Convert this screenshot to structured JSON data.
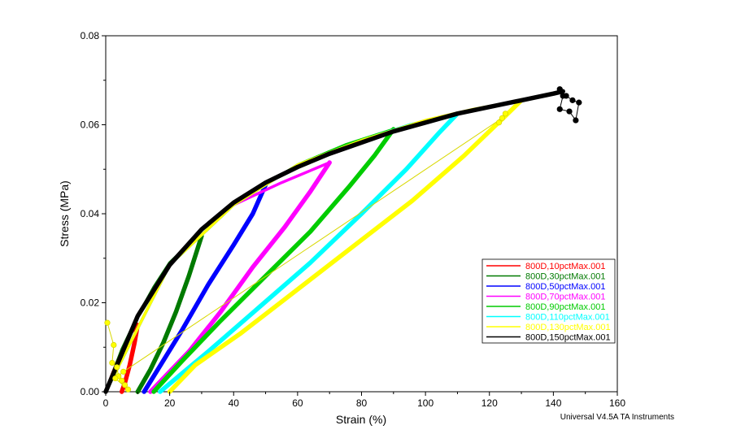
{
  "chart_data": {
    "type": "line",
    "xlabel": "Strain (%)",
    "ylabel": "Stress (MPa)",
    "xlim": [
      0,
      160
    ],
    "ylim": [
      0,
      0.08
    ],
    "x_ticks": [
      "0",
      "20",
      "40",
      "60",
      "80",
      "100",
      "120",
      "140",
      "160"
    ],
    "y_ticks": [
      "0.00",
      "0.02",
      "0.04",
      "0.06",
      "0.08"
    ],
    "credit": "Universal V4.5A TA Instruments",
    "grid": false,
    "legend_position": "lower-right",
    "series": [
      {
        "name": "800D,10pctMax.001",
        "color": "#ff0000",
        "loading": [
          [
            0,
            0
          ],
          [
            2,
            0.004
          ],
          [
            4,
            0.0075
          ],
          [
            6,
            0.0105
          ],
          [
            8,
            0.0132
          ],
          [
            10,
            0.015
          ]
        ],
        "unloading": [
          [
            10,
            0.015
          ],
          [
            9,
            0.011
          ],
          [
            7.5,
            0.006
          ],
          [
            6,
            0.002
          ],
          [
            5,
            0
          ]
        ]
      },
      {
        "name": "800D,30pctMax.001",
        "color": "#007a00",
        "loading": [
          [
            0,
            0
          ],
          [
            5,
            0.0095
          ],
          [
            10,
            0.017
          ],
          [
            15,
            0.0235
          ],
          [
            20,
            0.029
          ],
          [
            25,
            0.0325
          ],
          [
            30,
            0.035
          ]
        ],
        "unloading": [
          [
            30,
            0.035
          ],
          [
            26,
            0.026
          ],
          [
            22,
            0.018
          ],
          [
            18,
            0.011
          ],
          [
            14,
            0.005
          ],
          [
            10,
            0
          ]
        ]
      },
      {
        "name": "800D,50pctMax.001",
        "color": "#0000ff",
        "loading": [
          [
            0,
            0
          ],
          [
            10,
            0.017
          ],
          [
            20,
            0.0285
          ],
          [
            30,
            0.0365
          ],
          [
            40,
            0.042
          ],
          [
            50,
            0.0465
          ]
        ],
        "unloading": [
          [
            50,
            0.0465
          ],
          [
            46,
            0.04
          ],
          [
            40,
            0.033
          ],
          [
            32,
            0.024
          ],
          [
            24,
            0.014
          ],
          [
            18,
            0.007
          ],
          [
            12,
            0
          ]
        ]
      },
      {
        "name": "800D,70pctMax.001",
        "color": "#ff00ff",
        "loading": [
          [
            0,
            0
          ],
          [
            20,
            0.0285
          ],
          [
            40,
            0.042
          ],
          [
            55,
            0.047
          ],
          [
            70,
            0.0515
          ]
        ],
        "unloading": [
          [
            70,
            0.0515
          ],
          [
            64,
            0.045
          ],
          [
            56,
            0.037
          ],
          [
            46,
            0.028
          ],
          [
            36,
            0.018
          ],
          [
            26,
            0.009
          ],
          [
            14,
            0
          ]
        ]
      },
      {
        "name": "800D,90pctMax.001",
        "color": "#00cc00",
        "loading": [
          [
            0,
            0
          ],
          [
            20,
            0.0285
          ],
          [
            40,
            0.042
          ],
          [
            60,
            0.051
          ],
          [
            75,
            0.0555
          ],
          [
            90,
            0.059
          ]
        ],
        "unloading": [
          [
            90,
            0.059
          ],
          [
            84,
            0.053
          ],
          [
            76,
            0.046
          ],
          [
            64,
            0.036
          ],
          [
            50,
            0.026
          ],
          [
            36,
            0.016
          ],
          [
            24,
            0.007
          ],
          [
            15,
            0
          ]
        ]
      },
      {
        "name": "800D,110pctMax.001",
        "color": "#00ffff",
        "loading": [
          [
            0,
            0
          ],
          [
            20,
            0.0285
          ],
          [
            40,
            0.042
          ],
          [
            60,
            0.051
          ],
          [
            80,
            0.0565
          ],
          [
            95,
            0.06
          ],
          [
            110,
            0.0625
          ]
        ],
        "unloading": [
          [
            110,
            0.0625
          ],
          [
            104,
            0.058
          ],
          [
            94,
            0.05
          ],
          [
            80,
            0.04
          ],
          [
            64,
            0.029
          ],
          [
            48,
            0.019
          ],
          [
            32,
            0.009
          ],
          [
            17,
            0
          ]
        ]
      },
      {
        "name": "800D,130pctMax.001",
        "color": "#ffff00",
        "loading": [
          [
            0,
            0
          ],
          [
            20,
            0.0285
          ],
          [
            40,
            0.042
          ],
          [
            60,
            0.051
          ],
          [
            80,
            0.0565
          ],
          [
            100,
            0.061
          ],
          [
            115,
            0.0635
          ],
          [
            130,
            0.0655
          ]
        ],
        "unloading": [
          [
            130,
            0.0655
          ],
          [
            125,
            0.062
          ],
          [
            112,
            0.053
          ],
          [
            96,
            0.043
          ],
          [
            78,
            0.033
          ],
          [
            60,
            0.023
          ],
          [
            42,
            0.013
          ],
          [
            28,
            0.006
          ],
          [
            20,
            0
          ]
        ],
        "markers": [
          [
            0.5,
            0.0155
          ],
          [
            2.5,
            0.0105
          ],
          [
            2,
            0.0065
          ],
          [
            3.5,
            0.0055
          ],
          [
            4,
            0.0035
          ],
          [
            5,
            0.0025
          ],
          [
            6,
            0.0015
          ],
          [
            7,
            0.0005
          ],
          [
            3,
            0.003
          ],
          [
            5.5,
            0.0045
          ],
          [
            124,
            0.0615
          ],
          [
            125,
            0.0625
          ],
          [
            123,
            0.0605
          ]
        ]
      },
      {
        "name": "800D,150pctMax.001",
        "color": "#000000",
        "loading": [
          [
            0,
            0
          ],
          [
            10,
            0.017
          ],
          [
            20,
            0.0285
          ],
          [
            30,
            0.0365
          ],
          [
            40,
            0.0425
          ],
          [
            50,
            0.047
          ],
          [
            60,
            0.0505
          ],
          [
            70,
            0.0535
          ],
          [
            80,
            0.056
          ],
          [
            90,
            0.0585
          ],
          [
            100,
            0.0605
          ],
          [
            110,
            0.0625
          ],
          [
            120,
            0.064
          ],
          [
            130,
            0.0655
          ],
          [
            140,
            0.067
          ],
          [
            143,
            0.0675
          ]
        ],
        "markers": [
          [
            142,
            0.068
          ],
          [
            144,
            0.0665
          ],
          [
            146,
            0.0655
          ],
          [
            148,
            0.065
          ],
          [
            147,
            0.061
          ],
          [
            145,
            0.063
          ],
          [
            142,
            0.0635
          ],
          [
            143,
            0.0665
          ]
        ]
      }
    ]
  }
}
